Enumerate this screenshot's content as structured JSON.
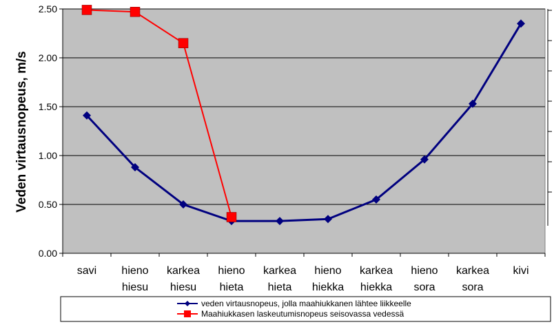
{
  "chart_data": {
    "type": "line",
    "ylabel": "Veden virtausnopeus, m/s",
    "ylim": [
      0,
      2.5
    ],
    "yticks": [
      "0.00",
      "0.50",
      "1.00",
      "1.50",
      "2.00",
      "2.50"
    ],
    "grid": true,
    "background": "#c0c0c0",
    "categories": [
      [
        "savi"
      ],
      [
        "hieno",
        "hiesu"
      ],
      [
        "karkea",
        "hiesu"
      ],
      [
        "hieno",
        "hieta"
      ],
      [
        "karkea",
        "hieta"
      ],
      [
        "hieno",
        "hiekka"
      ],
      [
        "karkea",
        "hiekka"
      ],
      [
        "hieno",
        "sora"
      ],
      [
        "karkea",
        "sora"
      ],
      [
        "kivi"
      ]
    ],
    "series": [
      {
        "name": "veden virtausnopeus, jolla maahiukkanen lähtee liikkeelle",
        "color": "#00007f",
        "marker": "diamond",
        "values": [
          1.41,
          0.88,
          0.5,
          0.33,
          0.33,
          0.35,
          0.55,
          0.96,
          1.53,
          2.35
        ]
      },
      {
        "name": "Maahiukkasen laskeutumisnopeus seisovassa vedessä",
        "color": "#ff0000",
        "marker": "square",
        "values": [
          2.49,
          2.47,
          2.15,
          0.37,
          null,
          null,
          null,
          null,
          null,
          null
        ]
      }
    ],
    "legend_position": "bottom"
  }
}
